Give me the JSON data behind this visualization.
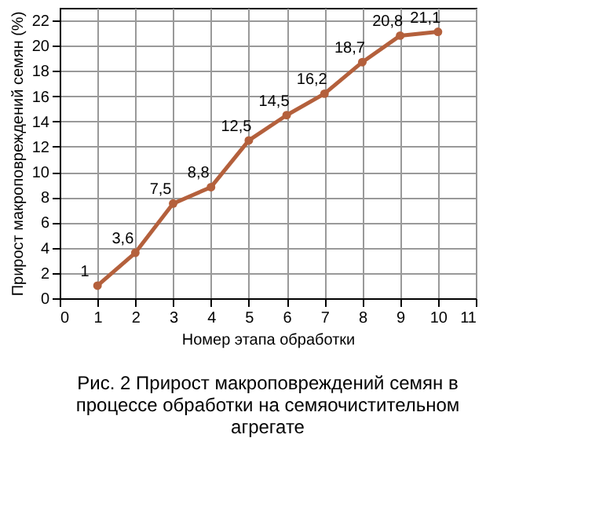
{
  "chart_data": {
    "type": "line",
    "xlabel": "Номер этапа обработки",
    "ylabel": "Прирост макроповреждений семян (%)",
    "x": [
      1,
      2,
      3,
      4,
      5,
      6,
      7,
      8,
      9,
      10
    ],
    "series": [
      {
        "color": "#b4603c",
        "values": [
          1,
          3.6,
          7.5,
          8.8,
          12.5,
          14.5,
          16.2,
          18.7,
          20.8,
          21.1
        ],
        "value_labels": [
          "1",
          "3,6",
          "7,5",
          "8,8",
          "12,5",
          "14,5",
          "16,2",
          "18,7",
          "20,8",
          "21,1"
        ]
      }
    ],
    "xlim": [
      0,
      11
    ],
    "xticks": [
      0,
      1,
      2,
      3,
      4,
      5,
      6,
      7,
      8,
      9,
      10,
      11
    ],
    "ylim": [
      0,
      23
    ],
    "yticks": [
      0,
      2,
      4,
      6,
      8,
      10,
      12,
      14,
      16,
      18,
      20,
      22
    ],
    "grid": true,
    "marker": "circle",
    "line_style": "solid",
    "annotations": [
      "Рис. 2     Прирост макроповреждений семян в процессе обработки на семяочистительном агрегате"
    ]
  }
}
